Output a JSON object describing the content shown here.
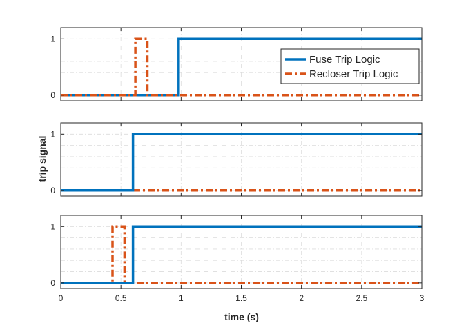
{
  "figure": {
    "ylabel": "trip signal",
    "xlabel": "time (s)"
  },
  "colors": {
    "fuse": "#0072BD",
    "recloser": "#D95319",
    "grid": "#DCDCDC",
    "axis": "#262626"
  },
  "legend": {
    "entries": [
      "Fuse Trip Logic",
      "Recloser Trip Logic"
    ],
    "location": "right, in top subplot"
  },
  "chart_data": [
    {
      "type": "line",
      "subplot": "top",
      "xlim": [
        0,
        3
      ],
      "ylim": [
        -0.1,
        1.2
      ],
      "x_ticks": [
        0,
        0.5,
        1,
        1.5,
        2,
        2.5,
        3
      ],
      "x_tick_labels": [],
      "y_ticks": [
        0,
        1
      ],
      "y_tick_labels": [
        "0",
        "1"
      ],
      "grid": true,
      "series": [
        {
          "name": "Fuse Trip Logic",
          "style": "solid",
          "color": "#0072BD",
          "x": [
            0,
            0.98,
            0.98,
            3
          ],
          "y": [
            0,
            0,
            1,
            1
          ]
        },
        {
          "name": "Recloser Trip Logic",
          "style": "dash-dot",
          "color": "#D95319",
          "x": [
            0,
            0.62,
            0.62,
            0.72,
            0.72,
            3
          ],
          "y": [
            0,
            0,
            1,
            1,
            0,
            0
          ]
        }
      ]
    },
    {
      "type": "line",
      "subplot": "middle",
      "xlim": [
        0,
        3
      ],
      "ylim": [
        -0.1,
        1.2
      ],
      "x_ticks": [
        0,
        0.5,
        1,
        1.5,
        2,
        2.5,
        3
      ],
      "x_tick_labels": [],
      "y_ticks": [
        0,
        1
      ],
      "y_tick_labels": [
        "0",
        "1"
      ],
      "grid": true,
      "series": [
        {
          "style": "dash-dot",
          "color": "#D95319",
          "x": [
            0,
            3
          ],
          "y": [
            0,
            0
          ]
        },
        {
          "style": "solid",
          "color": "#0072BD",
          "x": [
            0,
            0.6,
            0.6,
            3
          ],
          "y": [
            0,
            0,
            1,
            1
          ]
        }
      ]
    },
    {
      "type": "line",
      "subplot": "bottom",
      "xlim": [
        0,
        3
      ],
      "ylim": [
        -0.1,
        1.2
      ],
      "x_ticks": [
        0,
        0.5,
        1,
        1.5,
        2,
        2.5,
        3
      ],
      "x_tick_labels": [
        "0",
        "0.5",
        "1",
        "1.5",
        "2",
        "2.5",
        "3"
      ],
      "y_ticks": [
        0,
        1
      ],
      "y_tick_labels": [
        "0",
        "1"
      ],
      "grid": true,
      "series": [
        {
          "style": "dash-dot",
          "color": "#D95319",
          "x": [
            0,
            0.43,
            0.43,
            0.53,
            0.53,
            3
          ],
          "y": [
            0,
            0,
            1,
            1,
            0,
            0
          ]
        },
        {
          "style": "solid",
          "color": "#0072BD",
          "x": [
            0,
            0.6,
            0.6,
            3
          ],
          "y": [
            0,
            0,
            1,
            1
          ]
        }
      ]
    }
  ]
}
